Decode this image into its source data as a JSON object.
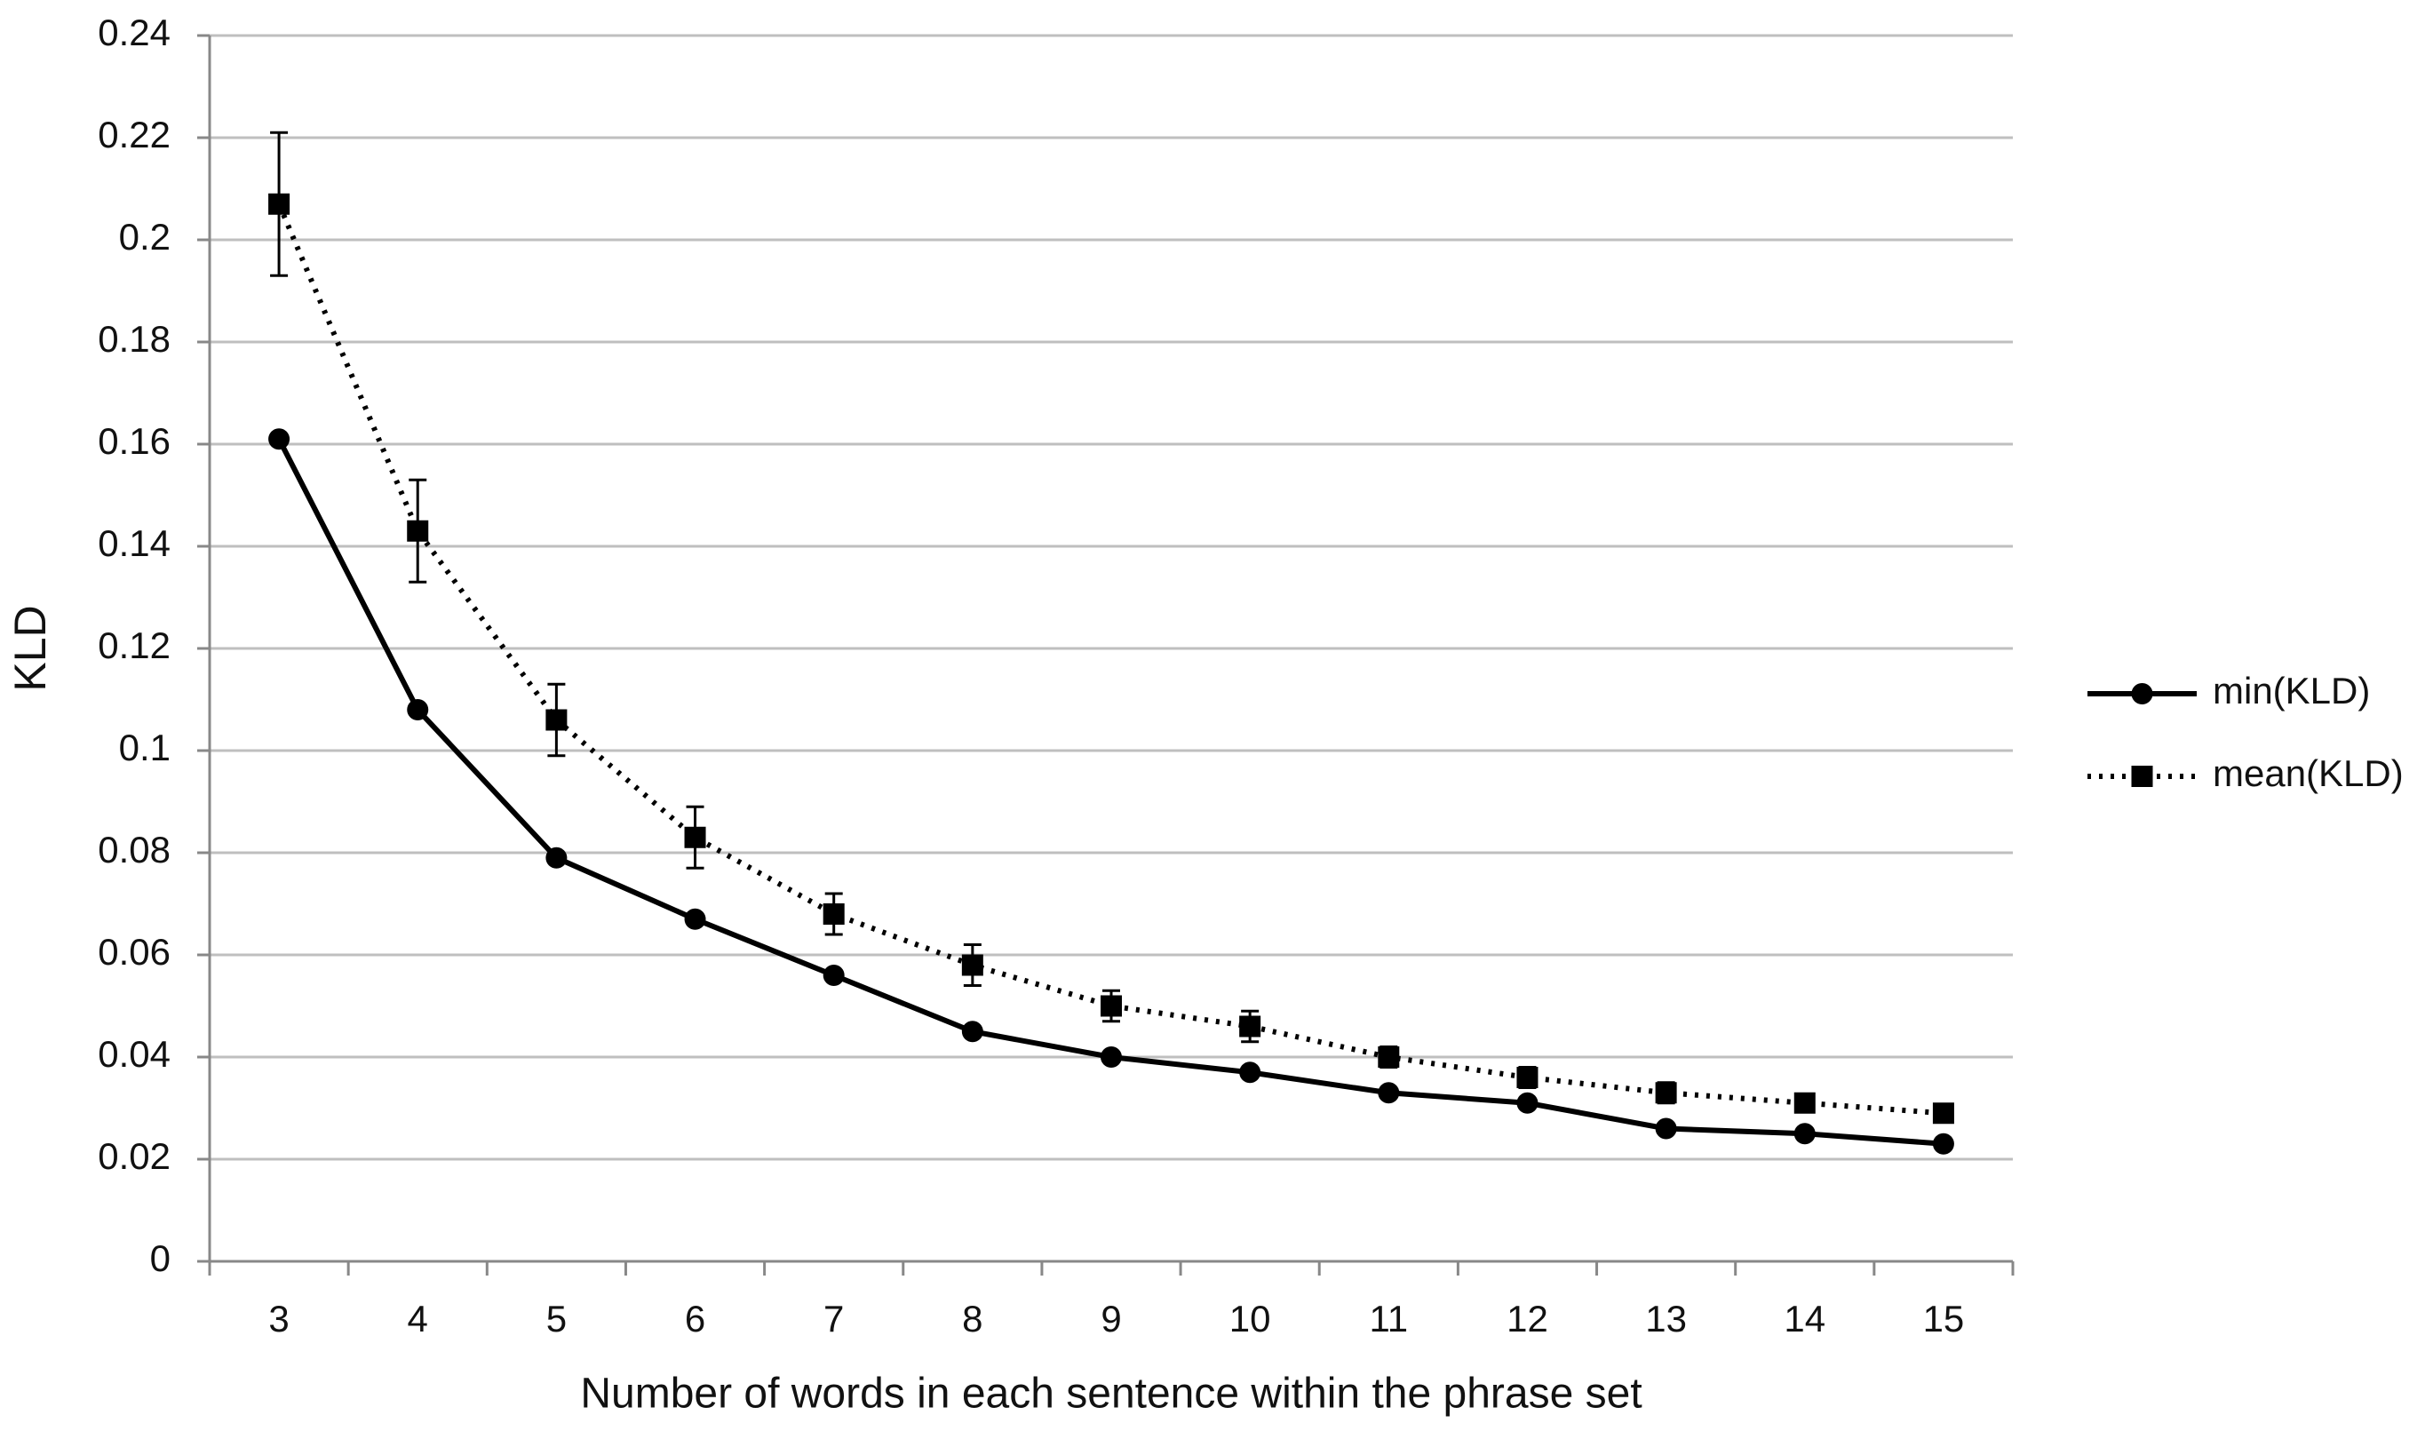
{
  "chart_data": {
    "type": "line",
    "x_label": "Number of words in each sentence within the phrase set",
    "y_label": "KLD",
    "categories": [
      "3",
      "4",
      "5",
      "6",
      "7",
      "8",
      "9",
      "10",
      "11",
      "12",
      "13",
      "14",
      "15"
    ],
    "series": [
      {
        "name": "min(KLD)",
        "color": "#000000",
        "line_style": "solid",
        "marker": "circle",
        "values": [
          0.161,
          0.108,
          0.079,
          0.067,
          0.056,
          0.045,
          0.04,
          0.037,
          0.033,
          0.031,
          0.026,
          0.025,
          0.023
        ]
      },
      {
        "name": "mean(KLD)",
        "color": "#000000",
        "line_style": "dotted",
        "marker": "square",
        "values": [
          0.207,
          0.143,
          0.106,
          0.083,
          0.068,
          0.058,
          0.05,
          0.046,
          0.04,
          0.036,
          0.033,
          0.031,
          0.029
        ],
        "errors": [
          0.014,
          0.01,
          0.007,
          0.006,
          0.004,
          0.004,
          0.003,
          0.003,
          0.002,
          0.002,
          0.002,
          0.001,
          0.001
        ]
      }
    ],
    "ylim": [
      0,
      0.24
    ],
    "yticks": [
      0,
      0.02,
      0.04,
      0.06,
      0.08,
      0.1,
      0.12,
      0.14,
      0.16,
      0.18,
      0.2,
      0.22,
      0.24
    ],
    "grid": true,
    "legend": "right"
  }
}
